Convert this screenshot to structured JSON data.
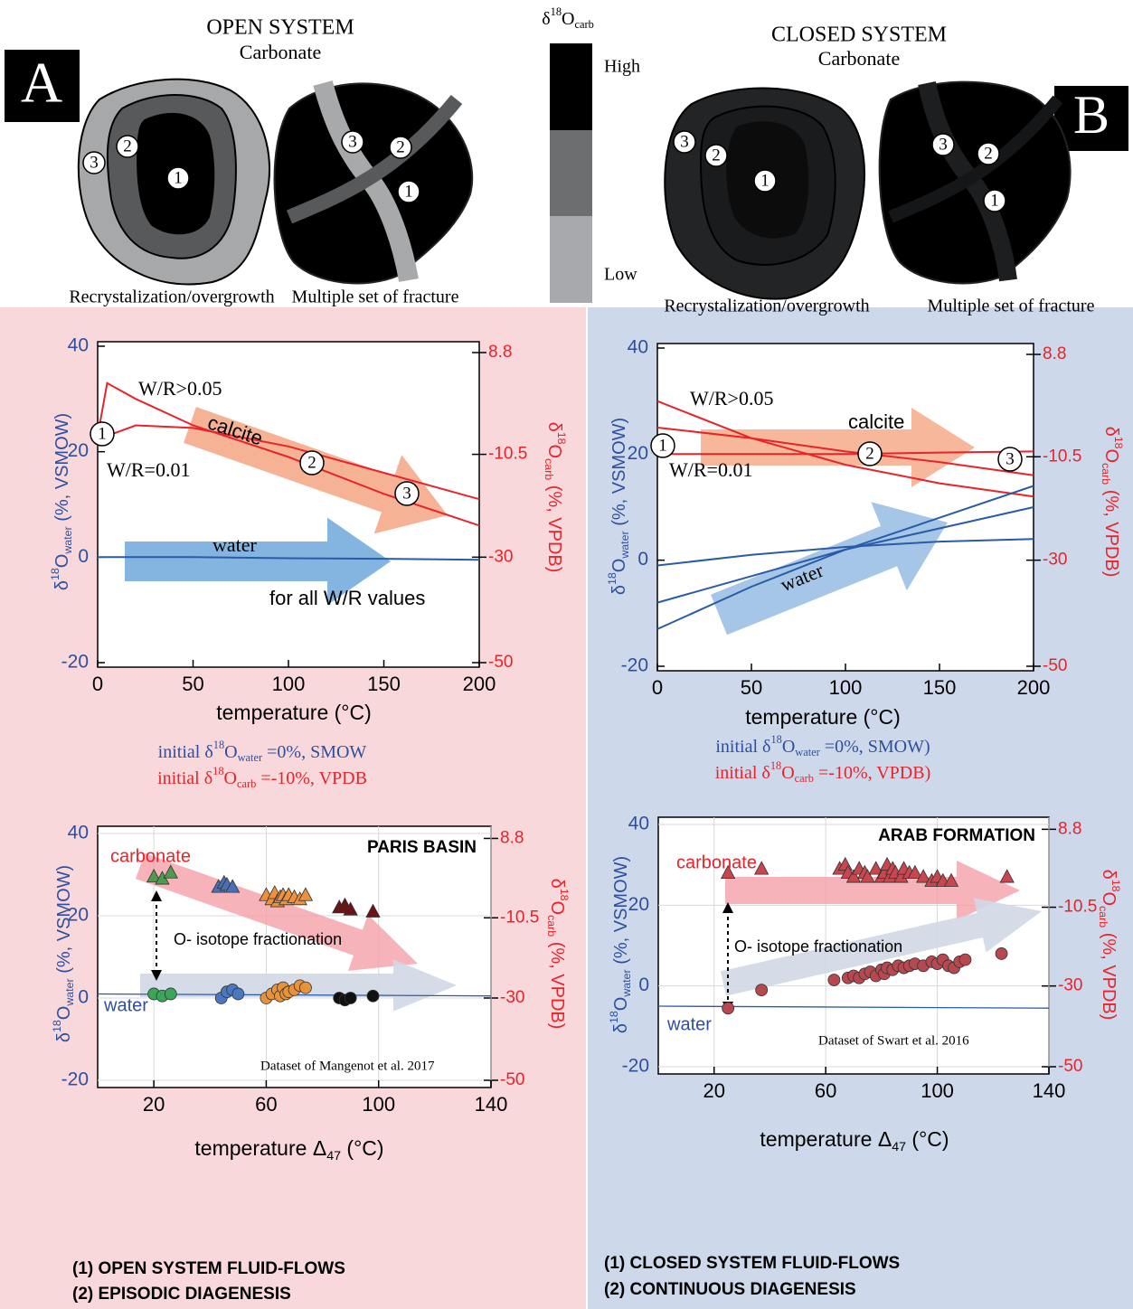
{
  "panel_labels": [
    "A",
    "B"
  ],
  "diagrams": {
    "open": {
      "title": "OPEN SYSTEM",
      "subtitle": "Carbonate",
      "captions": [
        "Recrystalization/overgrowth",
        "Multiple set of fracture"
      ],
      "numbers": [
        "1",
        "2",
        "3"
      ]
    },
    "closed": {
      "title": "CLOSED SYSTEM",
      "subtitle": "Carbonate",
      "captions": [
        "Recrystalization/overgrowth",
        "Multiple set of fracture"
      ],
      "numbers": [
        "1",
        "2",
        "3"
      ]
    },
    "scale": {
      "title": [
        "δ",
        {
          "sup": "18"
        },
        "O",
        {
          "sub": "carb"
        }
      ],
      "high": "High",
      "low": "Low"
    }
  },
  "chart_data": [
    {
      "type": "line",
      "x": [
        0,
        5,
        20,
        50,
        100,
        150,
        200
      ],
      "xlim": [
        0,
        200
      ],
      "xticks": [
        0,
        50,
        100,
        150,
        200
      ],
      "ylim": [
        -20,
        40
      ],
      "yticks": [
        -20,
        0,
        20,
        40
      ],
      "y2lim": [
        -50,
        10
      ],
      "y2ticks": [
        -50,
        -30,
        -10.5,
        8.8
      ],
      "xlabel": "temperature (°C)",
      "ylabel": [
        "δ",
        {
          "sup": "18"
        },
        "O",
        {
          "sub": "water"
        },
        " (%, VSMOW)"
      ],
      "y2label": [
        "δ",
        {
          "sup": "18"
        },
        "O",
        {
          "sub": "carb"
        },
        " (%, VPDB)"
      ],
      "series": [
        {
          "name": "W/R>0.05",
          "color": "#e8232a",
          "axis": "y2",
          "values": [
            -7,
            3,
            0,
            -5,
            -11,
            -18,
            -24
          ]
        },
        {
          "name": "W/R=0.01",
          "color": "#e8232a",
          "axis": "y2",
          "values": [
            -9,
            -7,
            -5,
            -5.5,
            -9,
            -14,
            -19
          ]
        },
        {
          "name": "water",
          "color": "#2a5ba8",
          "values": [
            0,
            0,
            0,
            0,
            -0.2,
            -0.3,
            -0.5
          ]
        }
      ],
      "annotations": [
        "calcite",
        "for all W/R values"
      ],
      "point_labels": [
        "1",
        "2",
        "3"
      ],
      "notes": [
        [
          "initial δ",
          {
            "sup": "18"
          },
          "O",
          {
            "sub": "water"
          },
          " =0%, SMOW"
        ],
        [
          "initial δ",
          {
            "sup": "18"
          },
          "O",
          {
            "sub": "carb"
          },
          " =-10%, VPDB"
        ]
      ]
    },
    {
      "type": "line",
      "x": [
        0,
        50,
        100,
        150,
        200
      ],
      "xlim": [
        0,
        200
      ],
      "xticks": [
        0,
        50,
        100,
        150,
        200
      ],
      "ylim": [
        -20,
        40
      ],
      "yticks": [
        -20,
        0,
        20,
        40
      ],
      "y2lim": [
        -50,
        10
      ],
      "y2ticks": [
        -50,
        -30,
        -10.5,
        8.8
      ],
      "xlabel": "temperature (°C)",
      "ylabel": [
        "δ",
        {
          "sup": "18"
        },
        "O",
        {
          "sub": "water"
        },
        " (%, VSMOW)"
      ],
      "y2label": [
        "δ",
        {
          "sup": "18"
        },
        "O",
        {
          "sub": "carb"
        },
        " (%, VPDB)"
      ],
      "series": [
        {
          "name": "W/R>0.05",
          "color": "#e8232a",
          "axis": "y2",
          "values": [
            0,
            -7,
            -12,
            -15.5,
            -18
          ]
        },
        {
          "color": "#e8232a",
          "axis": "y2",
          "values": [
            -5,
            -7,
            -9.5,
            -11.5,
            -14
          ]
        },
        {
          "name": "W/R=0.01",
          "color": "#e8232a",
          "axis": "y2",
          "values": [
            -10,
            -10,
            -10,
            -9.7,
            -9.5
          ]
        },
        {
          "color": "#2a5ba8",
          "values": [
            -1,
            1,
            2.5,
            3.5,
            4
          ]
        },
        {
          "color": "#2a5ba8",
          "values": [
            -8,
            -3,
            2,
            6,
            10
          ]
        },
        {
          "name": "water",
          "color": "#2a5ba8",
          "values": [
            -13,
            -5,
            2,
            8,
            14
          ]
        }
      ],
      "annotations": [
        "calcite"
      ],
      "point_labels": [
        "1",
        "2",
        "3"
      ],
      "notes": [
        [
          "initial δ",
          {
            "sup": "18"
          },
          "O",
          {
            "sub": "water"
          },
          " =0%, SMOW)"
        ],
        [
          "initial δ",
          {
            "sup": "18"
          },
          "O",
          {
            "sub": "carb"
          },
          " =-10%, VPDB)"
        ]
      ]
    },
    {
      "type": "scatter",
      "title": "PARIS BASIN",
      "xlim": [
        0,
        140
      ],
      "xticks": [
        20,
        60,
        100,
        140
      ],
      "ylim": [
        -20,
        40
      ],
      "yticks": [
        -20,
        0,
        20,
        40
      ],
      "y2lim": [
        -50,
        10
      ],
      "y2ticks": [
        -50,
        -30,
        -10.5,
        8.8
      ],
      "grid": true,
      "xlabel": [
        "temperature Δ",
        {
          "sub": "47"
        },
        " (°C)"
      ],
      "ylabel": [
        "δ",
        {
          "sup": "18"
        },
        "O",
        {
          "sub": "water"
        },
        " (%, VSMOW)"
      ],
      "y2label": [
        "δ",
        {
          "sup": "18"
        },
        "O",
        {
          "sub": "carb"
        },
        " (%, VPDB)"
      ],
      "series": [
        {
          "color": "#2a5ba8",
          "x": [
            0,
            140
          ],
          "values": [
            1,
            0.5
          ]
        },
        {
          "marker": "triangle",
          "color": "#4e9a4e",
          "x": [
            20,
            23,
            26
          ],
          "values": [
            29.5,
            29,
            30.5
          ]
        },
        {
          "marker": "triangle",
          "color": "#4a6fb5",
          "x": [
            43,
            45,
            46,
            48
          ],
          "values": [
            27,
            28,
            27.5,
            27
          ]
        },
        {
          "marker": "triangle",
          "color": "#f0903a",
          "x": [
            60,
            62,
            63,
            64,
            65,
            66,
            67,
            68,
            70,
            72,
            74
          ],
          "values": [
            25,
            24,
            25.5,
            23.5,
            24.5,
            25,
            24,
            25,
            24.5,
            24,
            25
          ]
        },
        {
          "marker": "triangle",
          "color": "#6b1414",
          "x": [
            86,
            88,
            90,
            98
          ],
          "values": [
            22,
            22.5,
            21.5,
            21
          ]
        },
        {
          "marker": "circle",
          "color": "#3aa65a",
          "x": [
            20,
            23,
            26
          ],
          "values": [
            1,
            0.5,
            1
          ]
        },
        {
          "marker": "circle",
          "color": "#4a78c0",
          "x": [
            44,
            46,
            48,
            50
          ],
          "values": [
            0,
            1.5,
            2,
            1
          ]
        },
        {
          "marker": "circle",
          "color": "#e8923a",
          "x": [
            60,
            62,
            64,
            65,
            66,
            67,
            68,
            70,
            72,
            74
          ],
          "values": [
            0,
            1,
            2,
            0.5,
            2.5,
            1,
            1.5,
            2,
            3,
            2.5
          ]
        },
        {
          "marker": "circle",
          "color": "#111111",
          "x": [
            86,
            88,
            90,
            98
          ],
          "values": [
            0,
            -0.5,
            0,
            0.5
          ]
        }
      ],
      "annotations": [
        "carbonate",
        "O- isotope fractionation",
        "water",
        "Dataset of Mangenot et al. 2017"
      ]
    },
    {
      "type": "scatter",
      "title": "ARAB FORMATION",
      "xlim": [
        0,
        140
      ],
      "xticks": [
        20,
        60,
        100,
        140
      ],
      "ylim": [
        -20,
        40
      ],
      "yticks": [
        -20,
        0,
        20,
        40
      ],
      "y2lim": [
        -50,
        10
      ],
      "y2ticks": [
        -50,
        -30,
        -10.5,
        8.8
      ],
      "grid": true,
      "xlabel": [
        "temperature Δ",
        {
          "sub": "47"
        },
        " (°C)"
      ],
      "ylabel": [
        "δ",
        {
          "sup": "18"
        },
        "O",
        {
          "sub": "water"
        },
        " (%, VSMOW)"
      ],
      "y2label": [
        "δ",
        {
          "sup": "18"
        },
        "O",
        {
          "sub": "carb"
        },
        " (%, VPDB)"
      ],
      "series": [
        {
          "color": "#2a5ba8",
          "x": [
            0,
            140
          ],
          "values": [
            -5,
            -5.5
          ]
        },
        {
          "marker": "triangle",
          "color": "#c8464e",
          "x": [
            25,
            37,
            65,
            67,
            68,
            70,
            72,
            74,
            75,
            78,
            80,
            81,
            82,
            83,
            84,
            85,
            87,
            88,
            90,
            92,
            95,
            98,
            100,
            102,
            105,
            125
          ],
          "values": [
            28,
            29,
            29,
            30,
            28,
            27,
            29,
            28,
            27,
            29,
            27,
            28,
            30,
            27,
            29,
            28,
            27,
            29,
            28,
            28,
            27,
            26,
            27,
            26,
            26,
            27
          ]
        },
        {
          "marker": "circle",
          "color": "#b84850",
          "x": [
            25,
            37,
            63,
            68,
            70,
            72,
            74,
            76,
            78,
            80,
            81,
            82,
            84,
            86,
            88,
            90,
            92,
            95,
            98,
            100,
            102,
            104,
            106,
            108,
            110,
            123
          ],
          "values": [
            -5.5,
            -1,
            1.5,
            2,
            2.5,
            2,
            3,
            3.5,
            2.5,
            4,
            3,
            4.5,
            4,
            5,
            4.5,
            5,
            5.5,
            5,
            6,
            5.5,
            6.5,
            5,
            4.5,
            6,
            6.5,
            8
          ]
        }
      ],
      "annotations": [
        "carbonate",
        "O- isotope fractionation",
        "water",
        "Dataset of Swart et al. 2016"
      ]
    }
  ],
  "conclusions": {
    "open": [
      "(1) OPEN SYSTEM FLUID-FLOWS",
      "(2) EPISODIC DIAGENESIS"
    ],
    "closed": [
      "(1) CLOSED SYSTEM FLUID-FLOWS",
      "(2) CONTINUOUS DIAGENESIS"
    ]
  }
}
